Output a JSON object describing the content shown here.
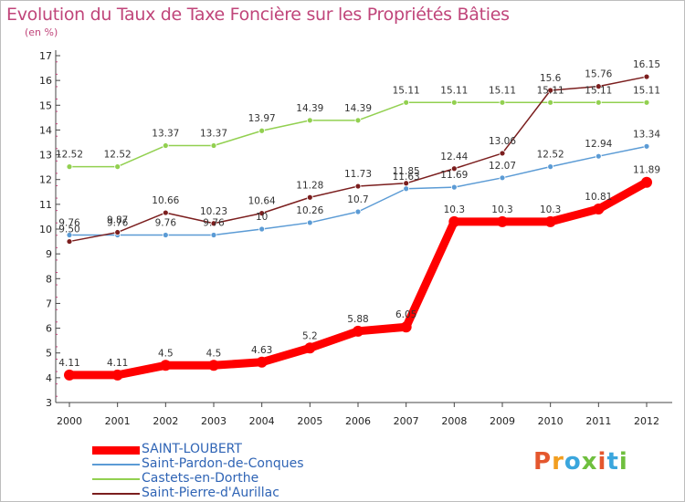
{
  "header": {
    "title": "Evolution du Taux de Taxe Foncière sur les Propriétés Bâties",
    "unit": "(en %)"
  },
  "logo": {
    "text": "Proxiti",
    "colors": [
      "#e4572e",
      "#f29e1f",
      "#3aa6dd",
      "#6fbf3e",
      "#e4572e",
      "#3aa6dd",
      "#6fbf3e"
    ]
  },
  "chart_data": {
    "type": "line",
    "title": "Evolution du Taux de Taxe Foncière sur les Propriétés Bâties",
    "ylabel": "(en %)",
    "xlabel": "",
    "x": [
      "2000",
      "2001",
      "2002",
      "2003",
      "2004",
      "2005",
      "2006",
      "2007",
      "2008",
      "2009",
      "2010",
      "2011",
      "2012"
    ],
    "ylim": [
      3,
      17
    ],
    "yticks": [
      3,
      4,
      5,
      6,
      7,
      8,
      9,
      10,
      11,
      12,
      13,
      14,
      15,
      16,
      17
    ],
    "grid": false,
    "legend_position": "bottom-left",
    "series": [
      {
        "name": "SAINT-LOUBERT",
        "color": "#ff0000",
        "values": [
          4.11,
          4.11,
          4.5,
          4.5,
          4.63,
          5.2,
          5.88,
          6.05,
          10.3,
          10.3,
          10.3,
          10.81,
          11.89
        ],
        "labels": [
          "4.11",
          "4.11",
          "4.5",
          "4.5",
          "4.63",
          "5.2",
          "5.88",
          "6.05",
          "10.3",
          "10.3",
          "10.3",
          "10.81",
          "11.89"
        ]
      },
      {
        "name": "Saint-Pardon-de-Conques",
        "color": "#5b9bd5",
        "values": [
          9.76,
          9.76,
          9.76,
          9.76,
          10,
          10.26,
          10.7,
          11.63,
          11.69,
          12.07,
          12.52,
          12.94,
          13.34
        ],
        "labels": [
          "9.76",
          "9.76",
          "9.76",
          "9.76",
          "10",
          "10.26",
          "10.7",
          "11.63",
          "11.69",
          "12.07",
          "12.52",
          "12.94",
          "13.34"
        ]
      },
      {
        "name": "Castets-en-Dorthe",
        "color": "#92d050",
        "values": [
          12.52,
          12.52,
          13.37,
          13.37,
          13.97,
          14.39,
          14.39,
          15.11,
          15.11,
          15.11,
          15.11,
          15.11,
          15.11
        ],
        "labels": [
          "12.52",
          "12.52",
          "13.37",
          "13.37",
          "13.97",
          "14.39",
          "14.39",
          "15.11",
          "15.11",
          "15.11",
          "15.11",
          "15.11",
          "15.11"
        ]
      },
      {
        "name": "Saint-Pierre-d'Aurillac",
        "color": "#7b1e1e",
        "values": [
          9.5,
          9.87,
          10.66,
          10.23,
          10.64,
          11.28,
          11.73,
          11.85,
          12.44,
          13.06,
          15.6,
          15.76,
          16.15
        ],
        "labels": [
          "9.50",
          "9.87",
          "10.66",
          "10.23",
          "10.64",
          "11.28",
          "11.73",
          "11.85",
          "12.44",
          "13.06",
          "15.6",
          "15.76",
          "16.15"
        ]
      }
    ]
  }
}
